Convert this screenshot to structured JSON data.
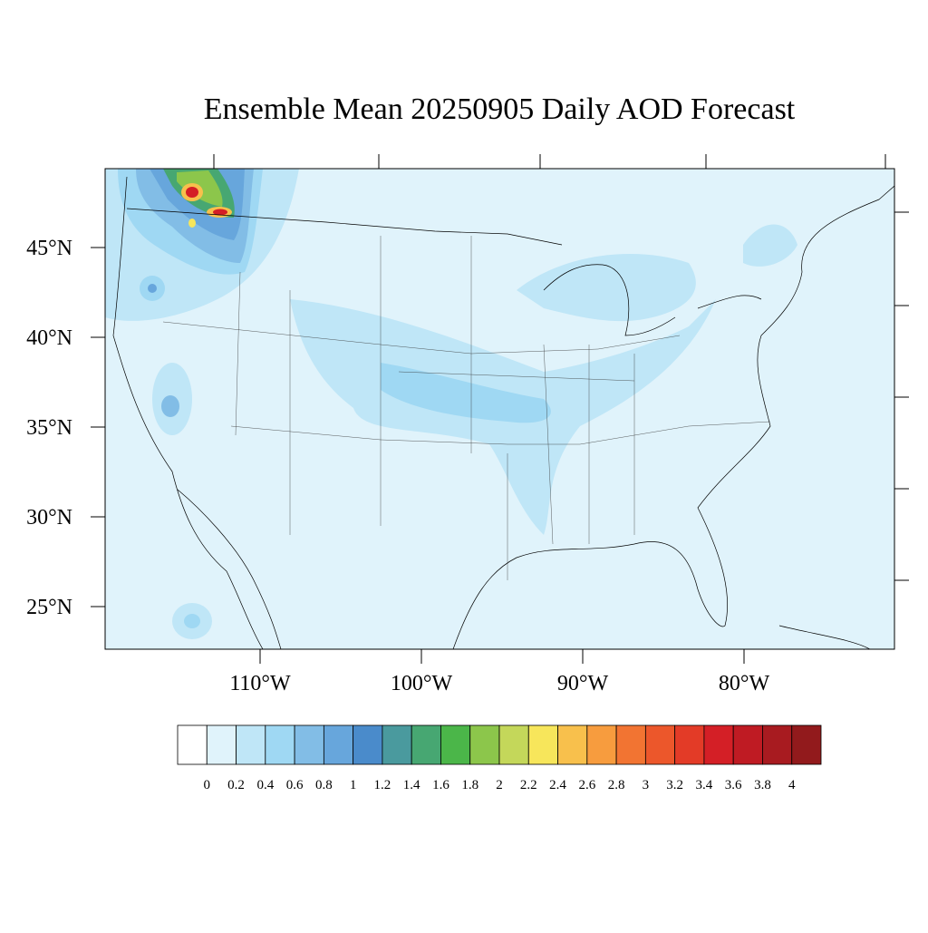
{
  "title": "Ensemble Mean 20250905 Daily AOD Forecast",
  "lat_ticks": [
    {
      "value": 45,
      "label": "45°N"
    },
    {
      "value": 40,
      "label": "40°N"
    },
    {
      "value": 35,
      "label": "35°N"
    },
    {
      "value": 30,
      "label": "30°N"
    },
    {
      "value": 25,
      "label": "25°N"
    }
  ],
  "lon_ticks": [
    {
      "value": -110,
      "label": "110°W"
    },
    {
      "value": -100,
      "label": "100°W"
    },
    {
      "value": -90,
      "label": "90°W"
    },
    {
      "value": -80,
      "label": "80°W"
    }
  ],
  "colorbar": {
    "levels": [
      0,
      0.2,
      0.4,
      0.6,
      0.8,
      1,
      1.2,
      1.4,
      1.6,
      1.8,
      2,
      2.2,
      2.4,
      2.6,
      2.8,
      3,
      3.2,
      3.4,
      3.6,
      3.8,
      4
    ],
    "colors": [
      "#ffffff",
      "#e0f3fb",
      "#bfe6f7",
      "#9fd8f3",
      "#82bde6",
      "#67a6dc",
      "#4a8bcb",
      "#4a9a9e",
      "#47a772",
      "#4bb649",
      "#8cc64b",
      "#c4d75a",
      "#f7e65b",
      "#f8c04c",
      "#f79c3e",
      "#f27432",
      "#ec572b",
      "#e33b27",
      "#d41f26",
      "#bf1b23",
      "#a81b20",
      "#921a1c"
    ]
  }
}
